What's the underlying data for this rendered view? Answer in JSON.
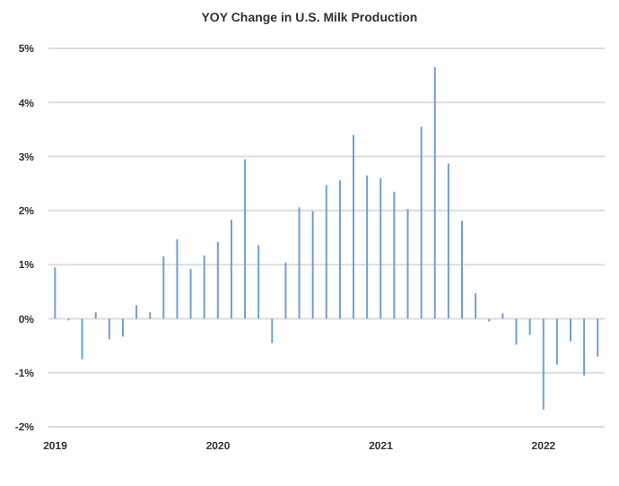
{
  "chart_data": {
    "type": "bar",
    "title": "YOY Change in U.S. Milk Production",
    "categories": [
      "2019",
      null,
      null,
      null,
      null,
      null,
      null,
      null,
      null,
      null,
      null,
      null,
      "2020",
      null,
      null,
      null,
      null,
      null,
      null,
      null,
      null,
      null,
      null,
      null,
      "2021",
      null,
      null,
      null,
      null,
      null,
      null,
      null,
      null,
      null,
      null,
      null,
      "2022",
      null,
      null,
      null,
      null
    ],
    "values": [
      0.95,
      -0.03,
      -0.75,
      0.12,
      -0.38,
      -0.33,
      0.25,
      0.12,
      1.15,
      1.47,
      0.92,
      1.17,
      1.42,
      1.83,
      2.95,
      1.36,
      -0.45,
      1.04,
      2.06,
      1.99,
      2.47,
      2.56,
      3.4,
      2.65,
      2.6,
      2.35,
      2.03,
      3.55,
      4.65,
      2.87,
      1.81,
      0.47,
      -0.05,
      0.1,
      -0.48,
      -0.3,
      -1.68,
      -0.85,
      -0.42,
      -1.05,
      -0.7
    ],
    "color": "#6f9fd8",
    "ylim": [
      -2,
      5
    ],
    "yticks": [
      {
        "value": -2,
        "label": "-2%"
      },
      {
        "value": -1,
        "label": "-1%"
      },
      {
        "value": 0,
        "label": "0%"
      },
      {
        "value": 1,
        "label": "1%"
      },
      {
        "value": 2,
        "label": "2%"
      },
      {
        "value": 3,
        "label": "3%"
      },
      {
        "value": 4,
        "label": "4%"
      },
      {
        "value": 5,
        "label": "5%"
      }
    ],
    "grid": "y"
  }
}
